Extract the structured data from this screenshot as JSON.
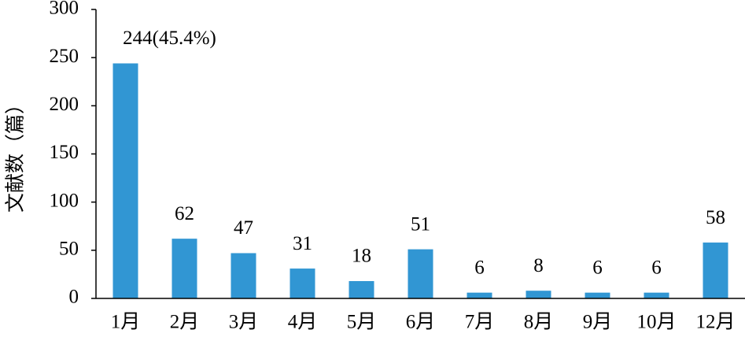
{
  "chart_data": {
    "type": "bar",
    "y_label": "文献数（篇）",
    "categories": [
      "1月",
      "2月",
      "3月",
      "4月",
      "5月",
      "6月",
      "7月",
      "8月",
      "9月",
      "10月",
      "12月"
    ],
    "values": [
      244,
      62,
      47,
      31,
      18,
      51,
      6,
      8,
      6,
      6,
      58
    ],
    "value_labels": [
      "244(45.4%)",
      "62",
      "47",
      "31",
      "18",
      "51",
      "6",
      "8",
      "6",
      "6",
      "58"
    ],
    "color": "#3196d3",
    "ylim": [
      0,
      300
    ],
    "yticks": [
      0,
      50,
      100,
      150,
      200,
      250,
      300
    ],
    "grid": false
  }
}
